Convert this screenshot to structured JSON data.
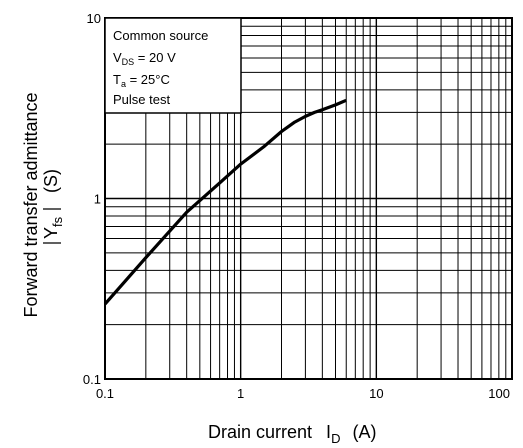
{
  "chart_data": {
    "type": "line",
    "scale": {
      "x": "log",
      "y": "log"
    },
    "xlim": [
      0.1,
      100
    ],
    "ylim": [
      0.1,
      10
    ],
    "grid": true,
    "x_ticks": [
      "0.1",
      "1",
      "10",
      "100"
    ],
    "y_ticks": [
      "0.1",
      "1",
      "10"
    ],
    "xlabel": {
      "main": "Drain current",
      "symbol": "I",
      "sub": "D",
      "unit": "(A)"
    },
    "ylabel": {
      "line1": "Forward transfer admittance",
      "symbol": "Y",
      "sub": "fs",
      "unit": "(S)"
    },
    "annotation": {
      "line1": "Common source",
      "line2_symbol": "V",
      "line2_sub": "DS",
      "line2_rest": " = 20 V",
      "line3_symbol": "T",
      "line3_sub": "a",
      "line3_rest": " = 25°C",
      "line4": "Pulse test"
    },
    "series": [
      {
        "x": [
          0.1,
          0.2,
          0.4,
          0.7,
          1.0,
          1.5,
          2.0,
          2.5,
          3.0,
          3.5,
          4.0,
          5.0,
          6.0
        ],
        "values": [
          0.26,
          0.47,
          0.84,
          1.22,
          1.55,
          1.95,
          2.35,
          2.65,
          2.85,
          3.0,
          3.1,
          3.3,
          3.5
        ]
      }
    ]
  }
}
